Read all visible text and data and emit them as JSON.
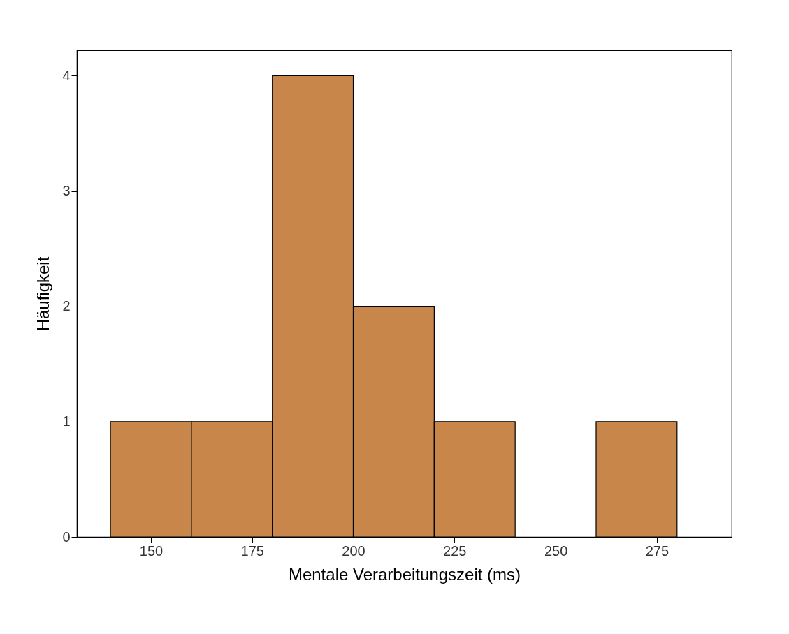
{
  "chart_data": {
    "type": "histogram",
    "xlabel": "Mentale Verarbeitungszeit (ms)",
    "ylabel": "Häufigkeit",
    "bins": [
      140,
      160,
      180,
      200,
      220,
      240,
      260,
      280
    ],
    "values": [
      1,
      1,
      4,
      2,
      1,
      0,
      1
    ],
    "color": "#c8864b",
    "xlim": [
      131.7,
      293.5
    ],
    "xticks": [
      150,
      175,
      200,
      225,
      250,
      275
    ],
    "ylim": [
      0,
      4.22
    ],
    "yticks": [
      0,
      1,
      2,
      3,
      4
    ],
    "grid": false
  }
}
